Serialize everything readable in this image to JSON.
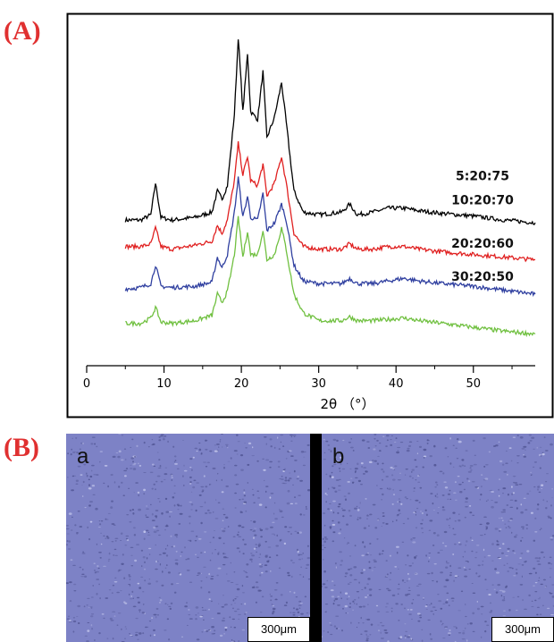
{
  "panel_labels": {
    "a": "(A)",
    "b": "(B)"
  },
  "colors": {
    "label_red": "#e03030",
    "micro_bg": "#7d82c6",
    "micro_speck": "#4e5290"
  },
  "chart_data": {
    "type": "line",
    "xlabel": "2θ （°）",
    "ylabel": "",
    "xlim": [
      0,
      58
    ],
    "xticks": [
      "0",
      "10",
      "20",
      "30",
      "40",
      "50"
    ],
    "y_axis": "offset stacked, no scale",
    "grid": false,
    "series": [
      {
        "name": "5:20:75",
        "color": "#000000",
        "x": [
          5,
          7,
          8.3,
          8.9,
          9.6,
          11,
          14,
          16.2,
          16.9,
          17.5,
          18.2,
          19.1,
          19.6,
          20.2,
          20.8,
          21.2,
          22.1,
          22.8,
          23.3,
          24.3,
          25.2,
          25.8,
          26.8,
          28,
          30,
          33,
          34,
          35,
          37,
          39,
          41,
          43,
          46,
          50,
          54,
          58
        ],
        "y": [
          55,
          55,
          57,
          69,
          56,
          55,
          56,
          58,
          66,
          63,
          68,
          95,
          124,
          96,
          118,
          96,
          93,
          111,
          86,
          94,
          107,
          92,
          66,
          58,
          57,
          58,
          61,
          57,
          58,
          59.5,
          59.5,
          58.5,
          57.5,
          56.5,
          55,
          54
        ]
      },
      {
        "name": "10:20:70",
        "color": "#e02020",
        "x": [
          5,
          7,
          8.3,
          8.9,
          9.6,
          11,
          14,
          16.2,
          16.9,
          17.5,
          18.2,
          19.1,
          19.6,
          20.2,
          20.8,
          21.2,
          22.1,
          22.8,
          23.3,
          24.3,
          25.2,
          25.8,
          26.8,
          28,
          30,
          33,
          34,
          35,
          37,
          39,
          41,
          43,
          46,
          50,
          54,
          58
        ],
        "y": [
          45,
          45,
          46,
          52,
          45,
          44,
          45.5,
          47,
          53,
          50,
          55,
          70,
          84,
          72,
          79,
          70,
          68,
          76,
          64,
          69,
          79,
          69,
          50,
          45,
          44,
          44,
          46,
          44,
          44,
          45,
          45,
          44,
          43,
          42,
          41,
          40
        ]
      },
      {
        "name": "20:20:60",
        "color": "#3040a0",
        "x": [
          5,
          7,
          8.3,
          8.9,
          9.6,
          11,
          14,
          16.2,
          16.9,
          17.5,
          18.2,
          19.1,
          19.6,
          20.2,
          20.8,
          21.2,
          22.1,
          22.8,
          23.3,
          24.3,
          25.2,
          25.8,
          26.8,
          28,
          30,
          33,
          34,
          35,
          37,
          39,
          41,
          43,
          46,
          50,
          54,
          58
        ],
        "y": [
          29,
          29.5,
          31,
          38,
          30,
          29.5,
          30,
          31.5,
          41,
          37,
          42,
          58,
          71,
          56,
          64,
          56,
          55,
          65,
          51,
          54,
          61,
          55,
          38,
          32,
          31,
          31,
          33,
          31,
          31,
          32,
          33,
          32,
          31,
          30,
          28.5,
          27
        ]
      },
      {
        "name": "30:20:50",
        "color": "#70c040",
        "x": [
          5,
          7,
          8.3,
          8.9,
          9.6,
          11,
          14,
          16.2,
          16.9,
          17.5,
          18.2,
          19.1,
          19.6,
          20.2,
          20.8,
          21.2,
          22.1,
          22.8,
          23.3,
          24.3,
          25.2,
          25.8,
          26.8,
          28,
          30,
          33,
          34,
          35,
          37,
          39,
          41,
          43,
          46,
          50,
          54,
          58
        ],
        "y": [
          16,
          16,
          18,
          22,
          16.5,
          16,
          17,
          19,
          27,
          24,
          28,
          42,
          56,
          41,
          51,
          42,
          42,
          51,
          40,
          42,
          52,
          44,
          27,
          20,
          17,
          17,
          18.5,
          17,
          17,
          17.5,
          18,
          17,
          16,
          14.5,
          13,
          12
        ]
      }
    ],
    "label_y": [
      70,
      61,
      44.5,
      32
    ]
  },
  "micrographs": [
    {
      "letter": "a",
      "scalebar": "300μm"
    },
    {
      "letter": "b",
      "scalebar": "300μm"
    }
  ]
}
